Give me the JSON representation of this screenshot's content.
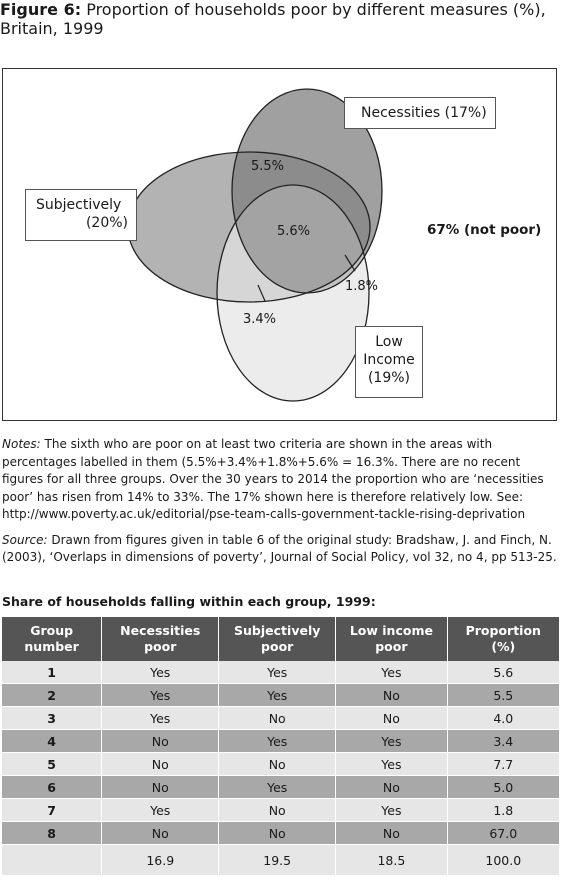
{
  "title": {
    "label": "Figure 6:",
    "line1": "Proportion of households poor by different measures (%),",
    "line2": "Britain, 1999"
  },
  "venn": {
    "necessities_label": "Necessities  (17%)",
    "subjectively_line1": "Subjectively",
    "subjectively_line2": "(20%)",
    "low_income_line1": "Low",
    "low_income_line2": "Income",
    "low_income_line3": "(19%)",
    "region_nec_subj": "5.5%",
    "region_all": "5.6%",
    "region_nec_low": "1.8%",
    "region_subj_low": "3.4%",
    "not_poor": "67% (not poor)",
    "colors": {
      "subjectively": "#b3b3b3",
      "necessities": "#a0a0a0",
      "low_income": "#ececec"
    }
  },
  "notes": {
    "notes_label": "Notes:",
    "notes_text": " The sixth who are poor on at least two criteria are shown in the areas with percentages labelled in them (5.5%+3.4%+1.8%+5.6% = 16.3%. There are no recent figures for all three groups. Over the 30 years to 2014 the proportion who are ‘necessities poor’ has risen from 14% to 33%. The 17% shown here is therefore relatively low.  See: http://www.poverty.ac.uk/editorial/pse-team-calls-government-tackle-rising-deprivation",
    "source_label": "Source:",
    "source_text": " Drawn from figures given in table 6 of the original study: Bradshaw, J. and Finch, N. (2003), ‘Overlaps in dimensions of poverty’, Journal of Social Policy, vol 32, no 4, pp 513-25."
  },
  "table": {
    "title": "Share of households falling within each group, 1999:",
    "headers": [
      "Group number",
      "Necessities poor",
      "Subjectively poor",
      "Low income poor",
      "Proportion (%)"
    ],
    "rows": [
      [
        "1",
        "Yes",
        "Yes",
        "Yes",
        "5.6"
      ],
      [
        "2",
        "Yes",
        "Yes",
        "No",
        "5.5"
      ],
      [
        "3",
        "Yes",
        "No",
        "No",
        "4.0"
      ],
      [
        "4",
        "No",
        "Yes",
        "Yes",
        "3.4"
      ],
      [
        "5",
        "No",
        "No",
        "Yes",
        "7.7"
      ],
      [
        "6",
        "No",
        "Yes",
        "No",
        "5.0"
      ],
      [
        "7",
        "Yes",
        "No",
        "Yes",
        "1.8"
      ],
      [
        "8",
        "No",
        "No",
        "No",
        "67.0"
      ]
    ],
    "totals": [
      "",
      "16.9",
      "19.5",
      "18.5",
      "100.0"
    ]
  }
}
